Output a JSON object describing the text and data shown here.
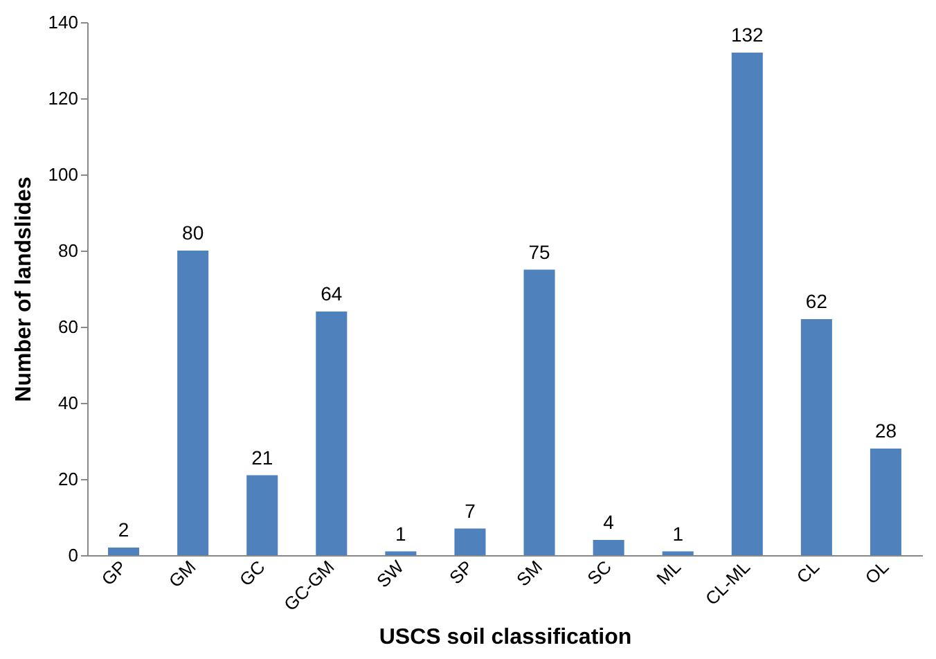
{
  "chart_data": {
    "type": "bar",
    "xlabel": "USCS soil classification",
    "ylabel": "Number of landslides",
    "categories": [
      "GP",
      "GM",
      "GC",
      "GC-GM",
      "SW",
      "SP",
      "SM",
      "SC",
      "ML",
      "CL-ML",
      "CL",
      "OL"
    ],
    "values": [
      2,
      80,
      21,
      64,
      1,
      7,
      75,
      4,
      1,
      132,
      62,
      28
    ],
    "color": "#4f81bd",
    "ylim": [
      0,
      140
    ],
    "yticks": [
      0,
      20,
      40,
      60,
      80,
      100,
      120,
      140
    ],
    "data_labels": true,
    "grid": false
  }
}
